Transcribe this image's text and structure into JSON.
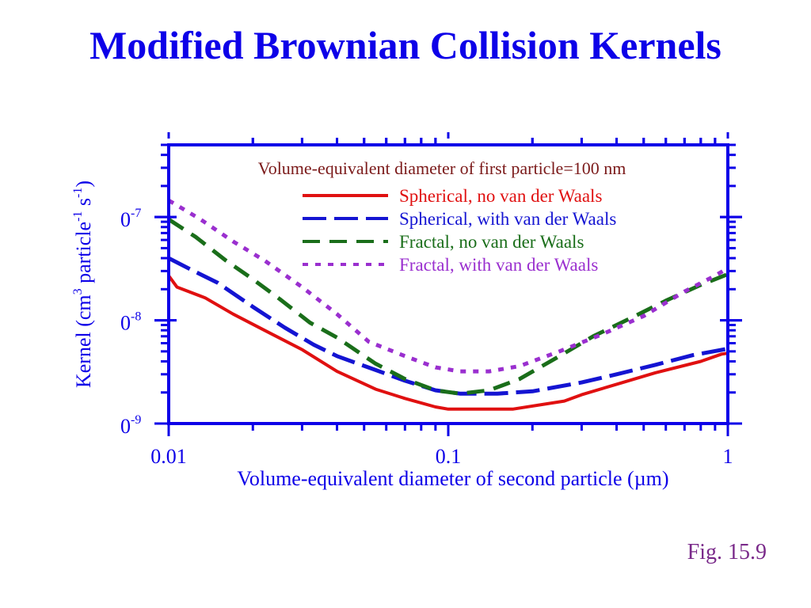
{
  "slide": {
    "title": "Modified Brownian Collision Kernels",
    "figure_label": "Fig. 15.9"
  },
  "colors": {
    "title": "#0d00e8",
    "axis": "#0d00e8",
    "figure_label": "#7a2a8a",
    "annotation": "#7b1a1a"
  },
  "chart_data": {
    "type": "line",
    "title": "",
    "annotation": "Volume-equivalent diameter of first particle=100 nm",
    "xlabel": "Volume-equivalent diameter of second particle (µm)",
    "ylabel": "Kernel (cm³ particle⁻¹ s⁻¹)",
    "x_scale": "log",
    "y_scale": "log",
    "xlim": [
      0.01,
      1
    ],
    "ylim": [
      1e-09,
      5e-07
    ],
    "x_tick_labels": [
      {
        "value": 0.01,
        "label": "0.01"
      },
      {
        "value": 0.1,
        "label": "0.1"
      },
      {
        "value": 1,
        "label": "1"
      }
    ],
    "y_tick_labels": [
      {
        "value": 1e-09,
        "base": "0",
        "exp": "-9"
      },
      {
        "value": 1e-08,
        "base": "0",
        "exp": "-8"
      },
      {
        "value": 1e-07,
        "base": "0",
        "exp": "-7"
      }
    ],
    "grid": false,
    "legend_position": "top-right",
    "series": [
      {
        "name": "Spherical, no van der Waals",
        "color": "#e01010",
        "dash": "solid",
        "x": [
          0.01,
          0.0107,
          0.0135,
          0.017,
          0.022,
          0.03,
          0.04,
          0.055,
          0.07,
          0.09,
          0.1,
          0.13,
          0.17,
          0.26,
          0.3,
          0.4,
          0.55,
          0.8,
          0.95,
          1.0
        ],
        "y": [
          2.7e-08,
          2.1e-08,
          1.65e-08,
          1.15e-08,
          8e-09,
          5.2e-09,
          3.2e-09,
          2.15e-09,
          1.75e-09,
          1.45e-09,
          1.38e-09,
          1.38e-09,
          1.38e-09,
          1.65e-09,
          1.9e-09,
          2.4e-09,
          3.1e-09,
          4e-09,
          4.7e-09,
          4.8e-09
        ]
      },
      {
        "name": "Spherical, with van der Waals",
        "color": "#1414d2",
        "dash": "long-dash",
        "x": [
          0.01,
          0.012,
          0.015,
          0.02,
          0.026,
          0.033,
          0.04,
          0.055,
          0.07,
          0.09,
          0.11,
          0.15,
          0.2,
          0.3,
          0.4,
          0.55,
          0.75,
          1.0
        ],
        "y": [
          4e-08,
          3.1e-08,
          2.3e-08,
          1.35e-08,
          8.5e-09,
          5.8e-09,
          4.5e-09,
          3.3e-09,
          2.6e-09,
          2.1e-09,
          1.95e-09,
          1.95e-09,
          2.05e-09,
          2.5e-09,
          3e-09,
          3.7e-09,
          4.6e-09,
          5.3e-09
        ]
      },
      {
        "name": "Fractal, no van der Waals",
        "color": "#1a6e1a",
        "dash": "dash",
        "x": [
          0.01,
          0.0125,
          0.016,
          0.02,
          0.025,
          0.032,
          0.04,
          0.055,
          0.07,
          0.09,
          0.11,
          0.14,
          0.18,
          0.25,
          0.33,
          0.45,
          0.6,
          0.8,
          1.0
        ],
        "y": [
          9.5e-08,
          6.4e-08,
          3.8e-08,
          2.5e-08,
          1.6e-08,
          9.5e-09,
          6.8e-09,
          3.8e-09,
          2.7e-09,
          2.1e-09,
          1.95e-09,
          2.1e-09,
          2.7e-09,
          4.5e-09,
          7e-09,
          1.05e-08,
          1.55e-08,
          2.2e-08,
          2.8e-08
        ]
      },
      {
        "name": "Fractal, with van der Waals",
        "color": "#9a2fcf",
        "dash": "dot",
        "x": [
          0.01,
          0.013,
          0.017,
          0.022,
          0.03,
          0.04,
          0.052,
          0.07,
          0.09,
          0.11,
          0.14,
          0.18,
          0.25,
          0.35,
          0.5,
          0.7,
          0.9,
          1.0
        ],
        "y": [
          1.45e-07,
          9.5e-08,
          5.8e-08,
          3.8e-08,
          2.1e-08,
          1.15e-08,
          6.2e-09,
          4.5e-09,
          3.5e-09,
          3.2e-09,
          3.2e-09,
          3.6e-09,
          5e-09,
          7.2e-09,
          1.1e-08,
          1.9e-08,
          2.7e-08,
          3.2e-08
        ]
      }
    ]
  }
}
